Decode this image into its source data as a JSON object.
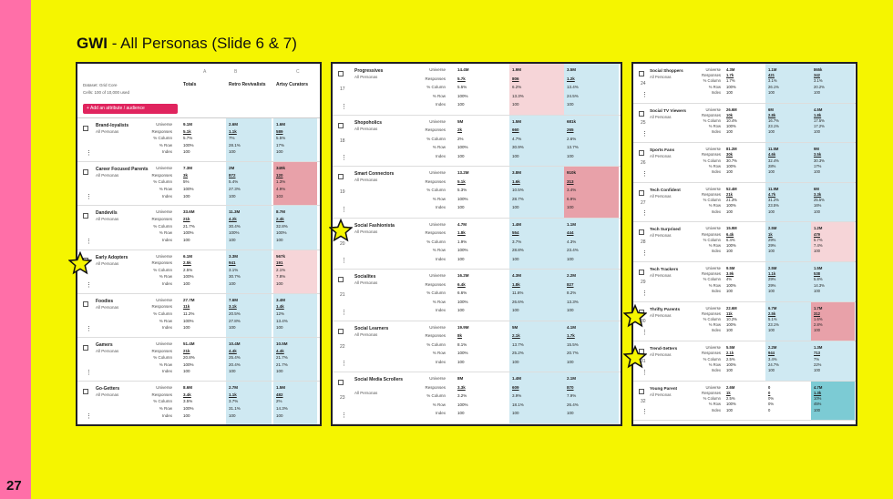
{
  "slide": {
    "number": "27",
    "title_bold": "GWI",
    "title_rest": " - All Personas (Slide 6 & 7)"
  },
  "colors": {
    "pink": "#ff6fa8",
    "yellow": "#f5f500",
    "blue": "#cfe9f2",
    "red": "#e8a1a9",
    "lightred": "#f6d5d8",
    "add_button": "#e0245e"
  },
  "panel1": {
    "letters": [
      "A",
      "B",
      "C"
    ],
    "dataset": "Dataset: Grid Core",
    "cells": "Cells: 100 of 10,000 used",
    "add_button": "+ Add an attribute / audience",
    "columns": [
      "Totals",
      "Retro Revivalists",
      "Artsy Curators"
    ],
    "rows": [
      {
        "name": "Brand-loyalists",
        "sub": "All Personas",
        "ordinal": "",
        "vals": [
          [
            "9.1M",
            "5.1k",
            "5.7%",
            "100%",
            "100"
          ],
          [
            "2.6M",
            "1.1k",
            "7%",
            "28.1%",
            "100"
          ],
          [
            "1.6M",
            "589",
            "5.5%",
            "17%",
            "100"
          ]
        ],
        "bg": [
          "",
          "blue",
          "blue"
        ]
      },
      {
        "name": "Career Focused Parents",
        "sub": "All Personas",
        "ordinal": "",
        "vals": [
          [
            "7.3M",
            "3k",
            "5%",
            "100%",
            "100"
          ],
          [
            "2M",
            "872",
            "5.4%",
            "27.3%",
            "100"
          ],
          [
            "349k",
            "120",
            "1.3%",
            "4.9%",
            "103"
          ]
        ],
        "bg": [
          "",
          "blue",
          "red"
        ]
      },
      {
        "name": "Dandevils",
        "sub": "All Personas",
        "ordinal": "",
        "vals": [
          [
            "33.6M",
            "21k",
            "21.7%",
            "100%",
            "100"
          ],
          [
            "11.3M",
            "4.2k",
            "30.4%",
            "100%",
            "100"
          ],
          [
            "8.7M",
            "2.4k",
            "32.8%",
            "100%",
            "100"
          ]
        ],
        "bg": [
          "",
          "blue",
          "blue"
        ]
      },
      {
        "name": "Early Adopters",
        "sub": "All Personas",
        "ordinal": "",
        "vals": [
          [
            "6.1M",
            "2.5k",
            "2.5%",
            "100%",
            "100"
          ],
          [
            "3.3M",
            "941",
            "3.1%",
            "30.7%",
            "100"
          ],
          [
            "567k",
            "191",
            "2.1%",
            "7.8%",
            "100"
          ]
        ],
        "bg": [
          "",
          "blue",
          "lightred"
        ]
      },
      {
        "name": "Foodies",
        "sub": "All Personas",
        "ordinal": "",
        "vals": [
          [
            "27.7M",
            "11k",
            "11.2%",
            "100%",
            "100"
          ],
          [
            "7.6M",
            "3.1k",
            "20.5%",
            "27.8%",
            "100"
          ],
          [
            "3.4M",
            "1.4k",
            "12%",
            "13.4%",
            "100"
          ]
        ],
        "bg": [
          "",
          "blue",
          "blue"
        ]
      },
      {
        "name": "Gamers",
        "sub": "All Personas",
        "ordinal": "",
        "vals": [
          [
            "51.4M",
            "21k",
            "20.8%",
            "100%",
            "100"
          ],
          [
            "10.4M",
            "4.4k",
            "25.4%",
            "20.4%",
            "100"
          ],
          [
            "10.5M",
            "4.4k",
            "21.7%",
            "21.7%",
            "100"
          ]
        ],
        "bg": [
          "",
          "blue",
          "blue"
        ]
      },
      {
        "name": "Go-Getters",
        "sub": "All Personas",
        "ordinal": "",
        "vals": [
          [
            "8.6M",
            "3.4k",
            "3.5%",
            "100%",
            "100"
          ],
          [
            "2.7M",
            "1.1k",
            "3.7%",
            "31.1%",
            "100"
          ],
          [
            "1.5M",
            "482",
            "2%",
            "14.3%",
            "100"
          ]
        ],
        "bg": [
          "",
          "blue",
          "blue"
        ]
      }
    ]
  },
  "panel2": {
    "rows": [
      {
        "name": "Progressives",
        "sub": "All Personas",
        "ordinal": "17",
        "vals": [
          [
            "14.4M",
            "5.7k",
            "5.5%",
            "100%",
            "100"
          ],
          [
            "1.9M",
            "806",
            "6.2%",
            "13.3%",
            "100"
          ],
          [
            "3.5M",
            "1.2k",
            "13.4%",
            "24.5%",
            "100"
          ]
        ],
        "bg": [
          "",
          "lightred",
          "blue"
        ]
      },
      {
        "name": "Shopoholics",
        "sub": "All Personas",
        "ordinal": "18",
        "vals": [
          [
            "5M",
            "2k",
            "2%",
            "100%",
            "100"
          ],
          [
            "1.5M",
            "660",
            "4.7%",
            "30.9%",
            "100"
          ],
          [
            "681k",
            "265",
            "2.6%",
            "13.7%",
            "100"
          ]
        ],
        "bg": [
          "",
          "blue",
          "blue"
        ]
      },
      {
        "name": "Smart Connectors",
        "sub": "All Personas",
        "ordinal": "19",
        "vals": [
          [
            "13.2M",
            "5.1k",
            "5.3%",
            "100%",
            "100"
          ],
          [
            "3.8M",
            "1.6k",
            "10.5%",
            "28.7%",
            "100"
          ],
          [
            "910k",
            "313",
            "3.4%",
            "6.9%",
            "100"
          ]
        ],
        "bg": [
          "",
          "blue",
          "red"
        ]
      },
      {
        "name": "Social Fashionista",
        "sub": "All Personas",
        "ordinal": "20",
        "vals": [
          [
            "4.7M",
            "1.8k",
            "1.9%",
            "100%",
            "100"
          ],
          [
            "1.4M",
            "554",
            "3.7%",
            "28.8%",
            "100"
          ],
          [
            "1.1M",
            "444",
            "4.3%",
            "23.4%",
            "100"
          ]
        ],
        "bg": [
          "",
          "blue",
          "blue"
        ]
      },
      {
        "name": "Socialites",
        "sub": "All Personas",
        "ordinal": "21",
        "vals": [
          [
            "16.2M",
            "6.4k",
            "6.6%",
            "100%",
            "100"
          ],
          [
            "4.3M",
            "1.8k",
            "11.6%",
            "26.6%",
            "100"
          ],
          [
            "2.2M",
            "827",
            "8.2%",
            "13.3%",
            "100"
          ]
        ],
        "bg": [
          "",
          "blue",
          "blue"
        ]
      },
      {
        "name": "Social Learners",
        "sub": "All Personas",
        "ordinal": "22",
        "vals": [
          [
            "19.9M",
            "8k",
            "8.1%",
            "100%",
            "100"
          ],
          [
            "5M",
            "2.1k",
            "13.7%",
            "25.2%",
            "100"
          ],
          [
            "4.1M",
            "1.7k",
            "15.5%",
            "20.7%",
            "100"
          ]
        ],
        "bg": [
          "",
          "blue",
          "blue"
        ]
      },
      {
        "name": "Social Media Scrollers",
        "sub": "All Personas",
        "ordinal": "23",
        "vals": [
          [
            "8M",
            "3.3k",
            "3.2%",
            "100%",
            "100"
          ],
          [
            "1.4M",
            "609",
            "3.9%",
            "18.1%",
            "100"
          ],
          [
            "2.1M",
            "870",
            "7.9%",
            "26.4%",
            "100"
          ]
        ],
        "bg": [
          "",
          "blue",
          "blue"
        ]
      }
    ]
  },
  "panel3": {
    "rows": [
      {
        "name": "Social Shoppers",
        "sub": "All Personas",
        "ordinal": "24",
        "vals": [
          [
            "4.3M",
            "1.7k",
            "1.7%",
            "100%",
            "100"
          ],
          [
            "1.1M",
            "421",
            "3.1%",
            "26.1%",
            "100"
          ],
          [
            "865k",
            "342",
            "3.1%",
            "20.2%",
            "100"
          ]
        ],
        "bg": [
          "",
          "blue",
          "blue"
        ]
      },
      {
        "name": "Social TV Viewers",
        "sub": "All Personas",
        "ordinal": "25",
        "vals": [
          [
            "26.6M",
            "10k",
            "10.4%",
            "100%",
            "100"
          ],
          [
            "6M",
            "2.8k",
            "16.7%",
            "23.1%",
            "100"
          ],
          [
            "4.5M",
            "1.8k",
            "17.5%",
            "17.2%",
            "100"
          ]
        ],
        "bg": [
          "",
          "blue",
          "blue"
        ]
      },
      {
        "name": "Sports Fans",
        "sub": "All Personas",
        "ordinal": "26",
        "vals": [
          [
            "81.2M",
            "30k",
            "30.7%",
            "100%",
            "100"
          ],
          [
            "11.5M",
            "4.6k",
            "32.4%",
            "28%",
            "100"
          ],
          [
            "9M",
            "3.5k",
            "30.3%",
            "17%",
            "100"
          ]
        ],
        "bg": [
          "",
          "blue",
          "blue"
        ]
      },
      {
        "name": "Tech Confident",
        "sub": "All Personas",
        "ordinal": "27",
        "vals": [
          [
            "52.4M",
            "21k",
            "21.3%",
            "100%",
            "100"
          ],
          [
            "11.9M",
            "4.7k",
            "31.2%",
            "23.5%",
            "100"
          ],
          [
            "6M",
            "3.3k",
            "25.5%",
            "16%",
            "100"
          ]
        ],
        "bg": [
          "",
          "blue",
          "blue"
        ]
      },
      {
        "name": "Tech Surprised",
        "sub": "All Personas",
        "ordinal": "28",
        "vals": [
          [
            "15.9M",
            "6.4k",
            "6.4%",
            "100%",
            "100"
          ],
          [
            "2.5M",
            "1k",
            "29%",
            "29%",
            "100"
          ],
          [
            "1.2M",
            "479",
            "5.7%",
            "7.4%",
            "100"
          ]
        ],
        "bg": [
          "",
          "blue",
          "lightred"
        ]
      },
      {
        "name": "Tech Trackers",
        "sub": "All Personas",
        "ordinal": "29",
        "vals": [
          [
            "9.5M",
            "3.9k",
            "4%",
            "100%",
            "100"
          ],
          [
            "2.5M",
            "1.1k",
            "29%",
            "29%",
            "100"
          ],
          [
            "1.5M",
            "538",
            "5.8%",
            "14.3%",
            "100"
          ]
        ],
        "bg": [
          "",
          "blue",
          "blue"
        ]
      },
      {
        "name": "Thrifty Parents",
        "sub": "All Personas",
        "ordinal": "30",
        "vals": [
          [
            "22.6M",
            "11k",
            "10.2%",
            "100%",
            "100"
          ],
          [
            "6.7M",
            "2.5k",
            "5.1%",
            "23.1%",
            "100"
          ],
          [
            "1.7M",
            "312",
            "1.6%",
            "2.8%",
            "100"
          ]
        ],
        "bg": [
          "",
          "blue",
          "red"
        ]
      },
      {
        "name": "Trend-Setters",
        "sub": "All Personas",
        "ordinal": "31",
        "vals": [
          [
            "5.5M",
            "2.1k",
            "2.5%",
            "100%",
            "100"
          ],
          [
            "2.2M",
            "944",
            "3.4%",
            "24.7%",
            "100"
          ],
          [
            "1.3M",
            "713",
            "7%",
            "22%",
            "100"
          ]
        ],
        "bg": [
          "",
          "blue",
          "blue"
        ]
      },
      {
        "name": "Young Parent",
        "sub": "All Personas",
        "ordinal": "32",
        "vals": [
          [
            "2.6M",
            "1k",
            "2.5%",
            "100%",
            "100"
          ],
          [
            "0",
            "0",
            "0%",
            "0%",
            "0"
          ],
          [
            "4.7M",
            "1.3k",
            "10%",
            "45%",
            "100"
          ]
        ],
        "bg": [
          "",
          "",
          "teal"
        ]
      }
    ]
  },
  "metrics": [
    "Universe",
    "Responses",
    "% Column",
    "% Row",
    "Index"
  ]
}
